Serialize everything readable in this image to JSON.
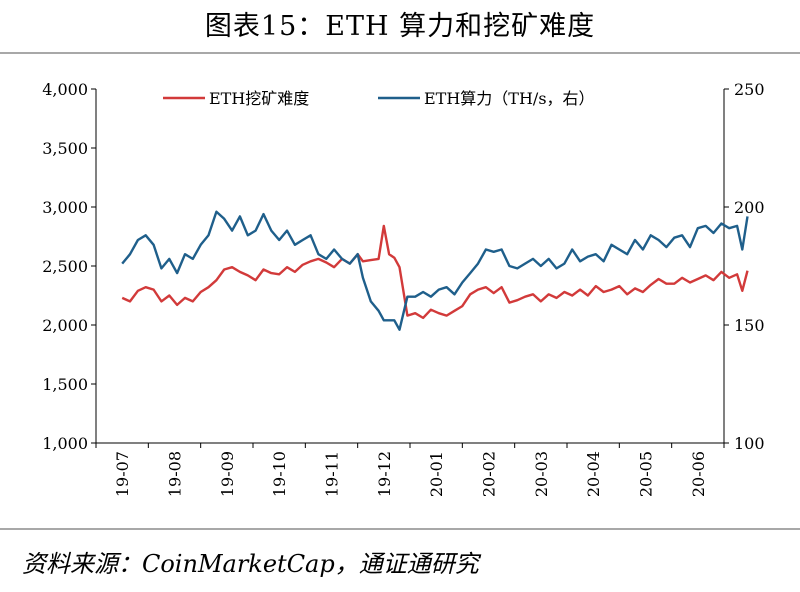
{
  "title": "图表15：ETH 算力和挖矿难度",
  "source": "资料来源：CoinMarketCap，通证通研究",
  "colors": {
    "difficulty": "#d23a3a",
    "hashrate": "#1f5f8b",
    "axis": "#000000"
  },
  "chart_data": {
    "type": "line",
    "title": "图表15：ETH 算力和挖矿难度",
    "categories": [
      "19-07",
      "19-08",
      "19-09",
      "19-10",
      "19-11",
      "19-12",
      "20-01",
      "20-02",
      "20-03",
      "20-04",
      "20-05",
      "20-06"
    ],
    "y_left": {
      "label": "",
      "ylim": [
        1000,
        4000
      ],
      "ticks": [
        "1,000",
        "1,500",
        "2,000",
        "2,500",
        "3,000",
        "3,500",
        "4,000"
      ]
    },
    "y_right": {
      "label": "",
      "ylim": [
        100,
        250
      ],
      "ticks": [
        "100",
        "150",
        "200",
        "250"
      ]
    },
    "legend": {
      "position": "top-center",
      "entries": [
        "ETH挖矿难度",
        "ETH算力（TH/s，右）"
      ]
    },
    "series": [
      {
        "name": "ETH挖矿难度",
        "axis": "left",
        "x": [
          0,
          0.15,
          0.3,
          0.45,
          0.6,
          0.75,
          0.9,
          1.05,
          1.2,
          1.35,
          1.5,
          1.65,
          1.8,
          1.95,
          2.1,
          2.25,
          2.4,
          2.55,
          2.7,
          2.85,
          3.0,
          3.15,
          3.3,
          3.45,
          3.6,
          3.75,
          3.9,
          4.05,
          4.2,
          4.35,
          4.5,
          4.6,
          4.75,
          4.9,
          5.0,
          5.1,
          5.2,
          5.3,
          5.45,
          5.6,
          5.75,
          5.9,
          6.05,
          6.2,
          6.35,
          6.5,
          6.65,
          6.8,
          6.95,
          7.1,
          7.25,
          7.4,
          7.55,
          7.7,
          7.85,
          8.0,
          8.15,
          8.3,
          8.45,
          8.6,
          8.75,
          8.9,
          9.05,
          9.2,
          9.35,
          9.5,
          9.65,
          9.8,
          9.95,
          10.1,
          10.25,
          10.4,
          10.55,
          10.7,
          10.85,
          11.0,
          11.15,
          11.3,
          11.45,
          11.6,
          11.75,
          11.85,
          11.95
        ],
        "values": [
          2230,
          2200,
          2290,
          2320,
          2300,
          2200,
          2250,
          2170,
          2230,
          2200,
          2280,
          2320,
          2380,
          2470,
          2490,
          2450,
          2420,
          2380,
          2470,
          2440,
          2430,
          2490,
          2450,
          2510,
          2540,
          2560,
          2530,
          2490,
          2560,
          2520,
          2600,
          2540,
          2550,
          2560,
          2840,
          2600,
          2570,
          2490,
          2080,
          2100,
          2060,
          2130,
          2100,
          2080,
          2120,
          2160,
          2260,
          2300,
          2320,
          2270,
          2320,
          2190,
          2210,
          2240,
          2260,
          2200,
          2260,
          2230,
          2280,
          2250,
          2300,
          2250,
          2330,
          2280,
          2300,
          2330,
          2260,
          2310,
          2280,
          2340,
          2390,
          2350,
          2350,
          2400,
          2360,
          2390,
          2420,
          2380,
          2450,
          2400,
          2430,
          2290,
          2460
        ]
      },
      {
        "name": "ETH算力（TH/s，右）",
        "axis": "right",
        "x": [
          0,
          0.15,
          0.3,
          0.45,
          0.6,
          0.75,
          0.9,
          1.05,
          1.2,
          1.35,
          1.5,
          1.65,
          1.8,
          1.95,
          2.1,
          2.25,
          2.4,
          2.55,
          2.7,
          2.85,
          3.0,
          3.15,
          3.3,
          3.45,
          3.6,
          3.75,
          3.9,
          4.05,
          4.2,
          4.35,
          4.5,
          4.6,
          4.75,
          4.9,
          5.0,
          5.1,
          5.2,
          5.3,
          5.45,
          5.6,
          5.75,
          5.9,
          6.05,
          6.2,
          6.35,
          6.5,
          6.65,
          6.8,
          6.95,
          7.1,
          7.25,
          7.4,
          7.55,
          7.7,
          7.85,
          8.0,
          8.15,
          8.3,
          8.45,
          8.6,
          8.75,
          8.9,
          9.05,
          9.2,
          9.35,
          9.5,
          9.65,
          9.8,
          9.95,
          10.1,
          10.25,
          10.4,
          10.55,
          10.7,
          10.85,
          11.0,
          11.15,
          11.3,
          11.45,
          11.6,
          11.75,
          11.85,
          11.95
        ],
        "values": [
          176,
          180,
          186,
          188,
          184,
          174,
          178,
          172,
          180,
          178,
          184,
          188,
          198,
          195,
          190,
          196,
          188,
          190,
          197,
          190,
          186,
          190,
          184,
          186,
          188,
          180,
          178,
          182,
          178,
          176,
          180,
          170,
          160,
          156,
          152,
          152,
          152,
          148,
          162,
          162,
          164,
          162,
          165,
          166,
          163,
          168,
          172,
          176,
          182,
          181,
          182,
          175,
          174,
          176,
          178,
          175,
          178,
          174,
          176,
          182,
          177,
          179,
          180,
          177,
          184,
          182,
          180,
          186,
          182,
          188,
          186,
          183,
          187,
          188,
          183,
          191,
          192,
          189,
          193,
          191,
          192,
          182,
          196
        ]
      }
    ]
  }
}
